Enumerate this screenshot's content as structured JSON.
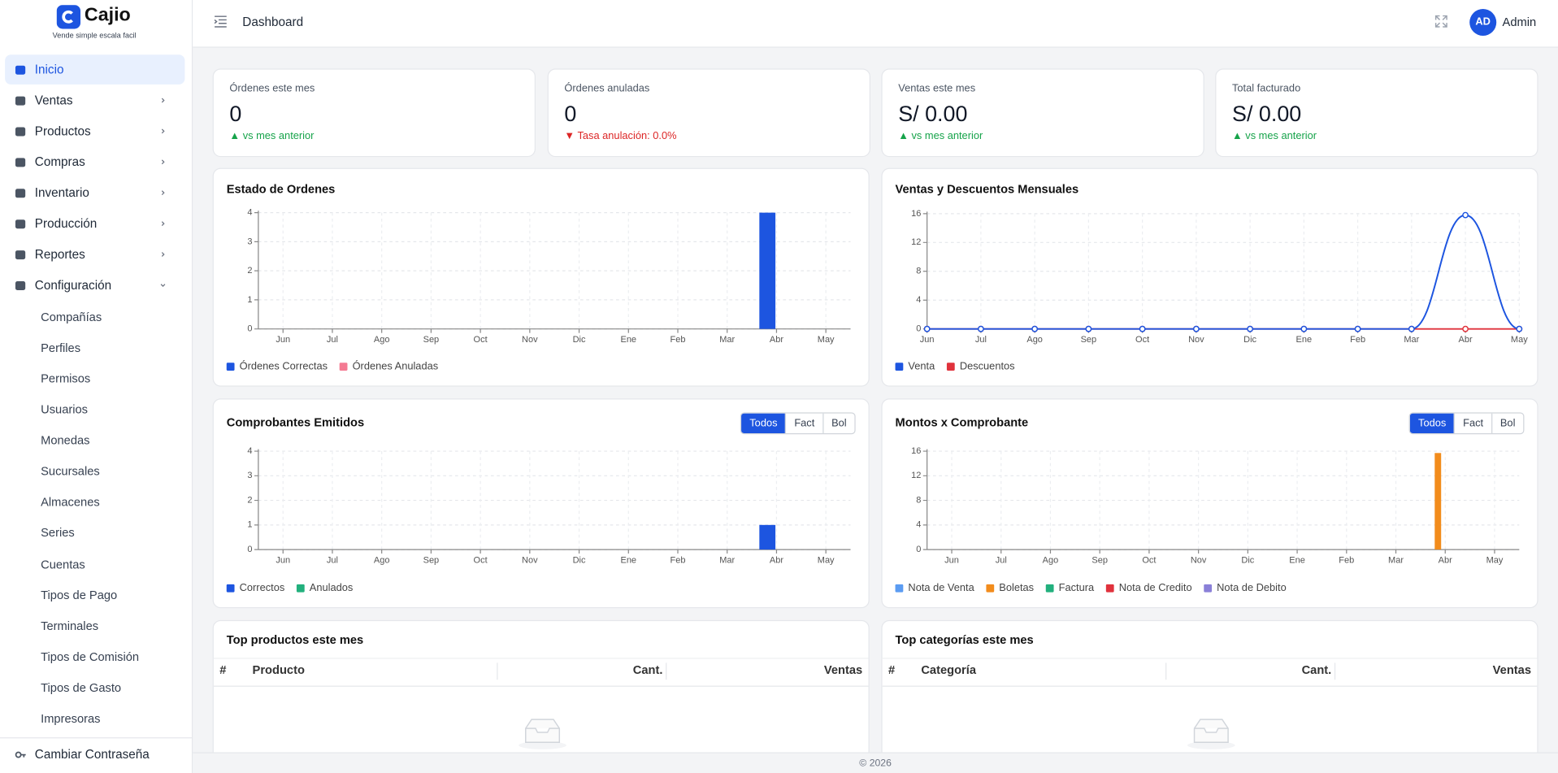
{
  "sidebar": {
    "brand": "Cajio",
    "tagline": "Vende simple escala facil",
    "menu": [
      "Inicio",
      "Ventas",
      "Productos",
      "Compras",
      "Inventario",
      "Producción",
      "Reportes",
      "Configuración"
    ],
    "submenu": [
      "Compañías",
      "Perfiles",
      "Permisos",
      "Usuarios",
      "Monedas",
      "Sucursales",
      "Almacenes",
      "Series",
      "Cuentas",
      "Tipos de Pago",
      "Terminales",
      "Tipos de Comisión",
      "Tipos de Gasto",
      "Impresoras"
    ],
    "bottom_item": "Cambiar Contraseña"
  },
  "header": {
    "title": "Dashboard",
    "avatar": "AD",
    "user": "Admin"
  },
  "stats": [
    {
      "label": "Órdenes este mes",
      "value": 0,
      "note": "▲ vs mes anterior",
      "color": "#16a34a"
    },
    {
      "label": "Órdenes anuladas",
      "value": 0,
      "note": "▼ Tasa anulación: 0.0%",
      "color": "#dc2626"
    },
    {
      "label": "Ventas este mes",
      "value": "S/ 0.00",
      "note": "▲ vs mes anterior",
      "color": "#16a34a"
    },
    {
      "label": "Total facturado",
      "value": "S/ 0.00",
      "note": "▲ vs mes anterior",
      "color": "#16a34a"
    }
  ],
  "chart_data": [
    {
      "type": "bar",
      "title": "Estado de Ordenes",
      "categories": [
        "Jun",
        "Jul",
        "Ago",
        "Sep",
        "Oct",
        "Nov",
        "Dic",
        "Ene",
        "Feb",
        "Mar",
        "Abr",
        "May"
      ],
      "series": [
        {
          "name": "Órdenes Correctas",
          "color": "#1d55e0",
          "values": [
            0,
            0,
            0,
            0,
            0,
            0,
            0,
            0,
            0,
            0,
            4,
            0
          ]
        },
        {
          "name": "Órdenes Anuladas",
          "color": "#f47a92",
          "values": [
            0,
            0,
            0,
            0,
            0,
            0,
            0,
            0,
            0,
            0,
            0,
            0
          ]
        }
      ],
      "ylim": [
        0,
        4
      ],
      "yticks": [
        0,
        1,
        2,
        3,
        4
      ],
      "grid": true
    },
    {
      "type": "line",
      "title": "Ventas y Descuentos Mensuales",
      "categories": [
        "Jun",
        "Jul",
        "Ago",
        "Sep",
        "Oct",
        "Nov",
        "Dic",
        "Ene",
        "Feb",
        "Mar",
        "Abr",
        "May"
      ],
      "series": [
        {
          "name": "Venta",
          "color": "#1d55e0",
          "values": [
            0,
            0,
            0,
            0,
            0,
            0,
            0,
            0,
            0,
            0,
            15.8,
            0
          ]
        },
        {
          "name": "Descuentos",
          "color": "#e0323c",
          "values": [
            0,
            0,
            0,
            0,
            0,
            0,
            0,
            0,
            0,
            0,
            0,
            0
          ]
        }
      ],
      "ylim": [
        0,
        16
      ],
      "yticks": [
        0,
        4,
        8,
        12,
        16
      ],
      "grid": true
    },
    {
      "type": "bar",
      "title": "Comprobantes Emitidos",
      "buttons": [
        "Todos",
        "Fact",
        "Bol"
      ],
      "selected": 0,
      "categories": [
        "Jun",
        "Jul",
        "Ago",
        "Sep",
        "Oct",
        "Nov",
        "Dic",
        "Ene",
        "Feb",
        "Mar",
        "Abr",
        "May"
      ],
      "series": [
        {
          "name": "Correctos",
          "color": "#1d55e0",
          "values": [
            0,
            0,
            0,
            0,
            0,
            0,
            0,
            0,
            0,
            0,
            1,
            0
          ]
        },
        {
          "name": "Anulados",
          "color": "#22b07d",
          "values": [
            0,
            0,
            0,
            0,
            0,
            0,
            0,
            0,
            0,
            0,
            0,
            0
          ]
        }
      ],
      "ylim": [
        0,
        4
      ],
      "yticks": [
        0,
        1,
        2,
        3,
        4
      ],
      "grid": true
    },
    {
      "type": "bar",
      "title": "Montos x Comprobante",
      "buttons": [
        "Todos",
        "Fact",
        "Bol"
      ],
      "selected": 0,
      "categories": [
        "Jun",
        "Jul",
        "Ago",
        "Sep",
        "Oct",
        "Nov",
        "Dic",
        "Ene",
        "Feb",
        "Mar",
        "Abr",
        "May"
      ],
      "series": [
        {
          "name": "Nota de Venta",
          "color": "#5b9cf2",
          "values": [
            0,
            0,
            0,
            0,
            0,
            0,
            0,
            0,
            0,
            0,
            0,
            0
          ]
        },
        {
          "name": "Boletas",
          "color": "#f28c1c",
          "values": [
            0,
            0,
            0,
            0,
            0,
            0,
            0,
            0,
            0,
            0,
            15.7,
            0
          ]
        },
        {
          "name": "Factura",
          "color": "#22b07d",
          "values": [
            0,
            0,
            0,
            0,
            0,
            0,
            0,
            0,
            0,
            0,
            0,
            0
          ]
        },
        {
          "name": "Nota de Credito",
          "color": "#e0323c",
          "values": [
            0,
            0,
            0,
            0,
            0,
            0,
            0,
            0,
            0,
            0,
            0,
            0
          ]
        },
        {
          "name": "Nota de Debito",
          "color": "#8a80d8",
          "values": [
            0,
            0,
            0,
            0,
            0,
            0,
            0,
            0,
            0,
            0,
            0,
            0
          ]
        }
      ],
      "ylim": [
        0,
        16
      ],
      "yticks": [
        0,
        4,
        8,
        12,
        16
      ],
      "grid": true
    }
  ],
  "tables": [
    {
      "title": "Top productos este mes",
      "columns": [
        "#",
        "Producto",
        "Cant.",
        "Ventas"
      ]
    },
    {
      "title": "Top categorías este mes",
      "columns": [
        "#",
        "Categoría",
        "Cant.",
        "Ventas"
      ]
    }
  ],
  "footer": "© 2026"
}
